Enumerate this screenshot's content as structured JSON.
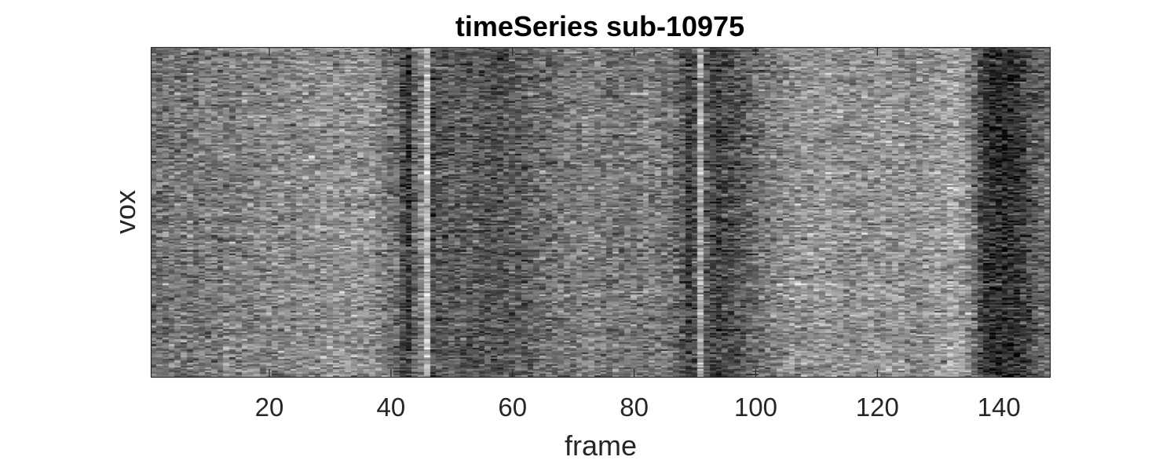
{
  "chart_data": {
    "type": "heatmap",
    "title": "timeSeries sub-10975",
    "xlabel": "frame",
    "ylabel": "vox",
    "xlim": [
      0.5,
      148.5
    ],
    "x_ticks": [
      20,
      40,
      60,
      80,
      100,
      120,
      140
    ],
    "x_tick_labels": [
      "20",
      "40",
      "60",
      "80",
      "100",
      "120",
      "140"
    ],
    "y_ticks": [],
    "colormap": "gray",
    "n_frames": 148,
    "frame_mean_intensity": [
      0.45,
      0.45,
      0.45,
      0.45,
      0.46,
      0.46,
      0.47,
      0.47,
      0.48,
      0.48,
      0.49,
      0.49,
      0.5,
      0.5,
      0.5,
      0.51,
      0.51,
      0.51,
      0.52,
      0.52,
      0.52,
      0.53,
      0.53,
      0.53,
      0.54,
      0.54,
      0.55,
      0.55,
      0.56,
      0.56,
      0.56,
      0.57,
      0.57,
      0.57,
      0.57,
      0.56,
      0.55,
      0.52,
      0.48,
      0.45,
      0.42,
      0.32,
      0.2,
      0.4,
      0.5,
      0.72,
      0.3,
      0.35,
      0.35,
      0.36,
      0.36,
      0.36,
      0.36,
      0.35,
      0.34,
      0.34,
      0.33,
      0.33,
      0.34,
      0.35,
      0.36,
      0.38,
      0.4,
      0.42,
      0.43,
      0.44,
      0.45,
      0.46,
      0.47,
      0.48,
      0.49,
      0.5,
      0.5,
      0.49,
      0.48,
      0.47,
      0.46,
      0.45,
      0.46,
      0.47,
      0.48,
      0.5,
      0.49,
      0.48,
      0.46,
      0.45,
      0.4,
      0.35,
      0.25,
      0.32,
      0.65,
      0.35,
      0.28,
      0.25,
      0.28,
      0.3,
      0.33,
      0.36,
      0.4,
      0.42,
      0.45,
      0.48,
      0.5,
      0.52,
      0.54,
      0.55,
      0.56,
      0.56,
      0.57,
      0.57,
      0.58,
      0.58,
      0.57,
      0.57,
      0.56,
      0.56,
      0.56,
      0.57,
      0.57,
      0.58,
      0.58,
      0.58,
      0.57,
      0.56,
      0.55,
      0.55,
      0.56,
      0.57,
      0.58,
      0.59,
      0.6,
      0.62,
      0.63,
      0.62,
      0.55,
      0.42,
      0.3,
      0.22,
      0.18,
      0.17,
      0.17,
      0.18,
      0.2,
      0.24,
      0.3,
      0.36,
      0.4,
      0.42
    ]
  }
}
